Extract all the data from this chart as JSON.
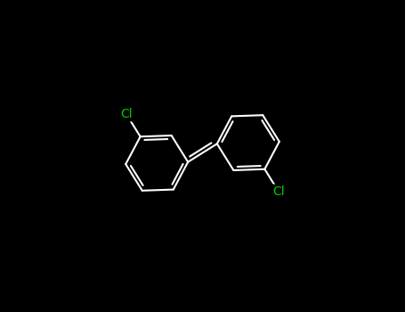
{
  "background_color": "#000000",
  "bond_color": "#ffffff",
  "cl_color": "#00cc00",
  "figsize": [
    4.55,
    3.5
  ],
  "dpi": 100,
  "bond_lw": 1.5,
  "cl_fontsize": 10,
  "xlim": [
    -1.5,
    11.5
  ],
  "ylim": [
    -1.0,
    8.5
  ]
}
